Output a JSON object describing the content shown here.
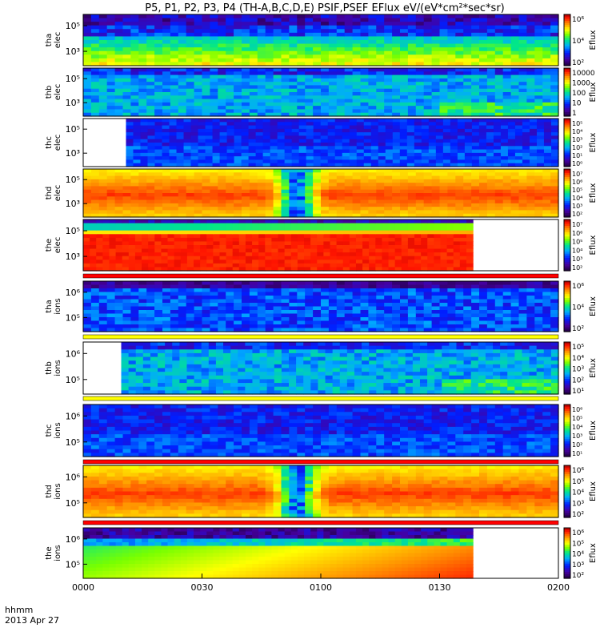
{
  "title": "P5, P1, P2, P3, P4 (TH-A,B,C,D,E) PSIF,PSEF EFlux eV/(eV*cm²*sec*sr)",
  "time_unit_label": "hhmm",
  "date_label": "2013 Apr 27",
  "colorbar_label": "Eflux",
  "chart_data": {
    "type": "heatmap",
    "x_axis": {
      "ticks": [
        "0000",
        "0030",
        "0100",
        "0130",
        "0200"
      ],
      "range": [
        "0000",
        "0200"
      ]
    },
    "panels": [
      {
        "name": "tha elec",
        "probe": "tha",
        "species": "elec",
        "y_ticks": [
          "10⁵",
          "10³"
        ],
        "colorbar_ticks": [
          "10⁶",
          "10⁴",
          "10²"
        ],
        "data_start": 0.0,
        "data_end": 1.0,
        "style": "speckle_top_green"
      },
      {
        "name": "thb elec",
        "probe": "thb",
        "species": "elec",
        "y_ticks": [
          "10⁵",
          "10³"
        ],
        "colorbar_ticks": [
          "10000",
          "1000",
          "100",
          "10",
          "1"
        ],
        "data_start": 0.0,
        "data_end": 1.0,
        "style": "blocky_blue"
      },
      {
        "name": "thc elec",
        "probe": "thc",
        "species": "elec",
        "y_ticks": [
          "10⁵",
          "10³"
        ],
        "colorbar_ticks": [
          "10⁵",
          "10⁴",
          "10³",
          "10²",
          "10¹",
          "10⁰"
        ],
        "data_start": 0.09,
        "data_end": 1.0,
        "style": "blocky_dark"
      },
      {
        "name": "thd elec",
        "probe": "thd",
        "species": "elec",
        "y_ticks": [
          "10⁵",
          "10³"
        ],
        "colorbar_ticks": [
          "10⁷",
          "10⁶",
          "10⁵",
          "10⁴",
          "10³",
          "10²"
        ],
        "data_start": 0.0,
        "data_end": 1.0,
        "style": "warm_gap"
      },
      {
        "name": "the elec",
        "probe": "the",
        "species": "elec",
        "y_ticks": [
          "10⁵",
          "10³"
        ],
        "colorbar_ticks": [
          "10⁷",
          "10⁶",
          "10⁵",
          "10⁴",
          "10³",
          "10²"
        ],
        "data_start": 0.0,
        "data_end": 0.82,
        "style": "red_bands",
        "mode_bar": "red"
      },
      {
        "name": "tha ions",
        "probe": "tha",
        "species": "ions",
        "y_ticks": [
          "10⁶",
          "10⁵"
        ],
        "colorbar_ticks": [
          "10⁶",
          "10⁴",
          "10²"
        ],
        "data_start": 0.0,
        "data_end": 1.0,
        "style": "speckle_blue",
        "mode_bar": "yellow"
      },
      {
        "name": "thb ions",
        "probe": "thb",
        "species": "ions",
        "y_ticks": [
          "10⁶",
          "10⁵"
        ],
        "colorbar_ticks": [
          "10⁵",
          "10⁴",
          "10³",
          "10²",
          "10¹"
        ],
        "data_start": 0.08,
        "data_end": 1.0,
        "style": "blocky_blue",
        "mode_bar": "yellow"
      },
      {
        "name": "thc ions",
        "probe": "thc",
        "species": "ions",
        "y_ticks": [
          "10⁶",
          "10⁵"
        ],
        "colorbar_ticks": [
          "10⁶",
          "10⁵",
          "10⁴",
          "10³",
          "10²",
          "10¹"
        ],
        "data_start": 0.0,
        "data_end": 1.0,
        "style": "blocky_dark",
        "mode_bar": "red"
      },
      {
        "name": "thd ions",
        "probe": "thd",
        "species": "ions",
        "y_ticks": [
          "10⁶",
          "10⁵"
        ],
        "colorbar_ticks": [
          "10⁶",
          "10⁵",
          "10⁴",
          "10³",
          "10²"
        ],
        "data_start": 0.0,
        "data_end": 1.0,
        "style": "warm_gap",
        "mode_bar": "red"
      },
      {
        "name": "the ions",
        "probe": "the",
        "species": "ions",
        "y_ticks": [
          "10⁶",
          "10⁵"
        ],
        "colorbar_ticks": [
          "10⁶",
          "10⁵",
          "10⁴",
          "10³",
          "10²"
        ],
        "data_start": 0.0,
        "data_end": 0.82,
        "style": "green_red"
      }
    ]
  }
}
